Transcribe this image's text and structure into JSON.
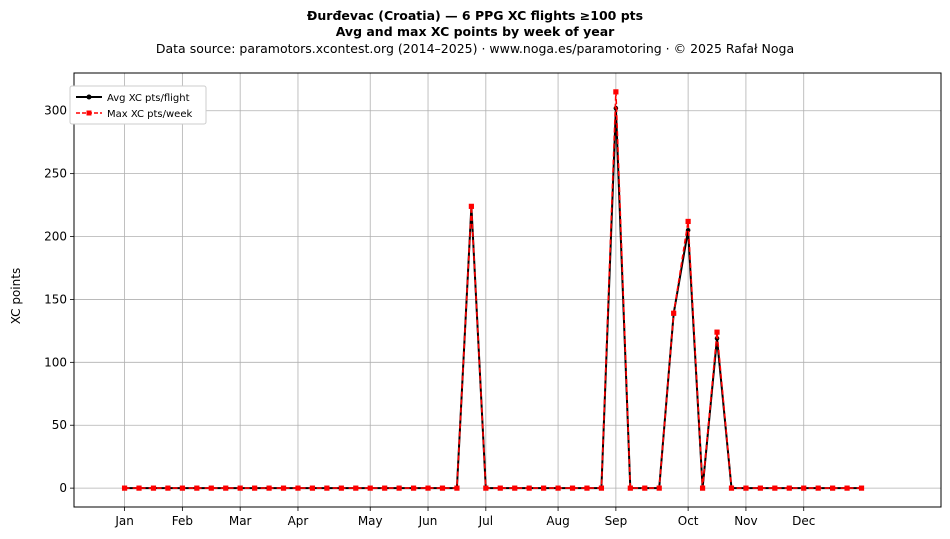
{
  "title_line1": "Đurđevac (Croatia)  —  6 PPG XC flights ≥100 pts",
  "title_line2": "Avg and max XC points by week of year",
  "title_line3": "Data source: paramotors.xcontest.org (2014–2025)  ·  www.noga.es/paramotoring  ·  © 2025 Rafał Noga",
  "chart_data": {
    "type": "line",
    "ylabel": "XC points",
    "xlabel": "",
    "grid": true,
    "legend_position": "upper-left",
    "ylim": [
      -15,
      330
    ],
    "xlim": [
      -2.5,
      57.5
    ],
    "yticks": [
      0,
      50,
      100,
      150,
      200,
      250,
      300
    ],
    "month_ticks": [
      {
        "label": "Jan",
        "week": 1
      },
      {
        "label": "Feb",
        "week": 5
      },
      {
        "label": "Mar",
        "week": 9
      },
      {
        "label": "Apr",
        "week": 13
      },
      {
        "label": "May",
        "week": 18
      },
      {
        "label": "Jun",
        "week": 22
      },
      {
        "label": "Jul",
        "week": 26
      },
      {
        "label": "Aug",
        "week": 31
      },
      {
        "label": "Sep",
        "week": 35
      },
      {
        "label": "Oct",
        "week": 40
      },
      {
        "label": "Nov",
        "week": 44
      },
      {
        "label": "Dec",
        "week": 48
      }
    ],
    "x": [
      1,
      2,
      3,
      4,
      5,
      6,
      7,
      8,
      9,
      10,
      11,
      12,
      13,
      14,
      15,
      16,
      17,
      18,
      19,
      20,
      21,
      22,
      23,
      24,
      25,
      26,
      27,
      28,
      29,
      30,
      31,
      32,
      33,
      34,
      35,
      36,
      37,
      38,
      39,
      40,
      41,
      42,
      43,
      44,
      45,
      46,
      47,
      48,
      49,
      50,
      51,
      52
    ],
    "series": [
      {
        "name": "Avg XC pts/flight",
        "color": "#000000",
        "marker": "circle",
        "linestyle": "solid",
        "values": [
          0,
          0,
          0,
          0,
          0,
          0,
          0,
          0,
          0,
          0,
          0,
          0,
          0,
          0,
          0,
          0,
          0,
          0,
          0,
          0,
          0,
          0,
          0,
          0,
          224,
          0,
          0,
          0,
          0,
          0,
          0,
          0,
          0,
          0,
          302,
          0,
          0,
          0,
          139,
          205,
          0,
          119,
          0,
          0,
          0,
          0,
          0,
          0,
          0,
          0,
          0,
          0
        ]
      },
      {
        "name": "Max XC pts/week",
        "color": "#ff0000",
        "marker": "square",
        "linestyle": "dashed",
        "values": [
          0,
          0,
          0,
          0,
          0,
          0,
          0,
          0,
          0,
          0,
          0,
          0,
          0,
          0,
          0,
          0,
          0,
          0,
          0,
          0,
          0,
          0,
          0,
          0,
          224,
          0,
          0,
          0,
          0,
          0,
          0,
          0,
          0,
          0,
          315,
          0,
          0,
          0,
          139,
          212,
          0,
          124,
          0,
          0,
          0,
          0,
          0,
          0,
          0,
          0,
          0,
          0
        ]
      }
    ]
  }
}
